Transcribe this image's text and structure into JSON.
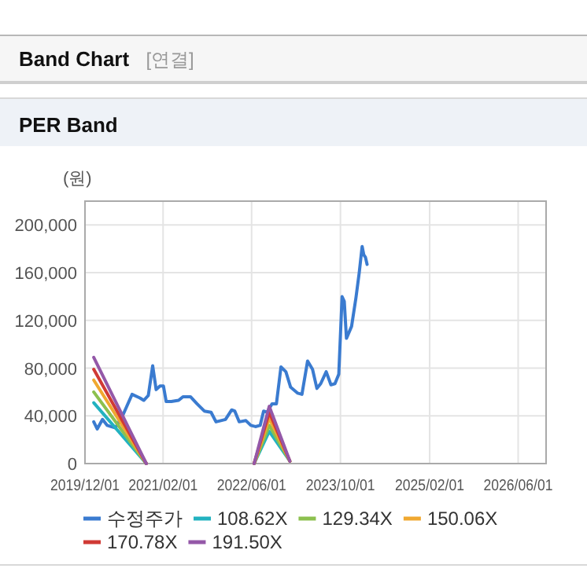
{
  "chart_data": {
    "type": "line",
    "title": "Band Chart",
    "subtitle": "PER Band",
    "annotations": [
      "[연결]"
    ],
    "ylabel": "(원)",
    "xlim": [
      "2019-12-01",
      "2026-11-01"
    ],
    "xticks": [
      {
        "value": "2019-12-01",
        "label": "2019/12/01"
      },
      {
        "value": "2021-02-01",
        "label": "2021/02/01"
      },
      {
        "value": "2022-06-01",
        "label": "2022/06/01"
      },
      {
        "value": "2023-10-01",
        "label": "2023/10/01"
      },
      {
        "value": "2025-02-01",
        "label": "2025/02/01"
      },
      {
        "value": "2026-06-01",
        "label": "2026/06/01"
      }
    ],
    "ylim": [
      0,
      220000
    ],
    "yticks": [
      0,
      {
        "value": 40000,
        "label": "40,000"
      },
      {
        "value": 80000,
        "label": "80,000"
      },
      {
        "value": 120000,
        "label": "120,000"
      },
      {
        "value": 160000,
        "label": "160,000"
      },
      {
        "value": 200000,
        "label": "200,000"
      }
    ],
    "grid": true,
    "legend": "bottom",
    "line_style": "solid",
    "series": [
      {
        "name": "수정주가",
        "color": "#3a7bd0",
        "x": [
          "2020-01-18",
          "2020-02-06",
          "2020-03-06",
          "2020-04-01",
          "2020-04-21",
          "2020-05-16",
          "2020-06-24",
          "2020-08-15",
          "2020-09-27",
          "2020-10-18",
          "2020-11-12",
          "2020-12-06",
          "2020-12-25",
          "2021-01-15",
          "2021-02-03",
          "2021-02-18",
          "2021-03-18",
          "2021-04-27",
          "2021-05-21",
          "2021-07-01",
          "2021-08-07",
          "2021-09-15",
          "2021-10-22",
          "2021-11-18",
          "2022-01-09",
          "2022-02-12",
          "2022-03-01",
          "2022-03-25",
          "2022-05-01",
          "2022-05-28",
          "2022-06-22",
          "2022-07-18",
          "2022-08-06",
          "2022-08-25",
          "2022-09-21",
          "2022-10-15",
          "2022-11-09",
          "2022-12-06",
          "2023-01-01",
          "2023-02-09",
          "2023-03-04",
          "2023-04-04",
          "2023-05-01",
          "2023-05-25",
          "2023-06-15",
          "2023-07-15",
          "2023-08-10",
          "2023-09-01",
          "2023-09-22",
          "2023-10-10",
          "2023-10-22",
          "2023-11-03",
          "2023-12-01",
          "2023-12-25",
          "2024-01-12",
          "2024-01-28",
          "2024-02-06",
          "2024-02-15",
          "2024-02-24"
        ],
        "values": [
          35000,
          29000,
          37000,
          32000,
          31000,
          30000,
          40000,
          58000,
          55000,
          53000,
          57000,
          82000,
          62000,
          65000,
          65000,
          52000,
          52000,
          53000,
          56000,
          56000,
          50000,
          44000,
          43000,
          35000,
          37000,
          45000,
          44000,
          35000,
          36000,
          32000,
          31000,
          32000,
          44000,
          43000,
          50000,
          50000,
          81000,
          77000,
          64000,
          59000,
          58000,
          86000,
          79000,
          63000,
          67000,
          77000,
          66000,
          67000,
          75000,
          140000,
          136000,
          105000,
          115000,
          139000,
          160000,
          182000,
          175000,
          173000,
          167000
        ]
      },
      {
        "name": "108.62X",
        "color": "#22b2c0",
        "x": [
          "2020-01-18",
          "2020-11-01"
        ],
        "values": [
          51000,
          0
        ]
      },
      {
        "name": "129.34X",
        "color": "#8cc04e",
        "x": [
          "2020-01-18",
          "2020-11-01"
        ],
        "values": [
          60000,
          0
        ]
      },
      {
        "name": "150.06X",
        "color": "#f0a830",
        "x": [
          "2020-01-18",
          "2020-11-01"
        ],
        "values": [
          70000,
          0
        ]
      },
      {
        "name": "170.78X",
        "color": "#d03a35",
        "x": [
          "2020-01-18",
          "2020-11-01"
        ],
        "values": [
          79000,
          0
        ]
      },
      {
        "name": "191.50X",
        "color": "#9458a8",
        "x": [
          "2020-01-18",
          "2020-11-01"
        ],
        "values": [
          89000,
          0
        ]
      },
      {
        "color": "#22b2c0",
        "x": [
          "2022-06-15",
          "2022-09-06",
          "2022-12-28"
        ],
        "values": [
          0,
          27000,
          2000
        ]
      },
      {
        "color": "#8cc04e",
        "x": [
          "2022-06-15",
          "2022-09-06",
          "2022-12-28"
        ],
        "values": [
          0,
          32000,
          2000
        ]
      },
      {
        "color": "#f0a830",
        "x": [
          "2022-06-15",
          "2022-09-06",
          "2022-12-28"
        ],
        "values": [
          0,
          38000,
          2000
        ]
      },
      {
        "color": "#d03a35",
        "x": [
          "2022-06-15",
          "2022-09-06",
          "2022-12-28"
        ],
        "values": [
          0,
          43000,
          2000
        ]
      },
      {
        "color": "#9458a8",
        "x": [
          "2022-06-15",
          "2022-09-06",
          "2022-12-28"
        ],
        "values": [
          0,
          48000,
          2000
        ]
      }
    ]
  }
}
